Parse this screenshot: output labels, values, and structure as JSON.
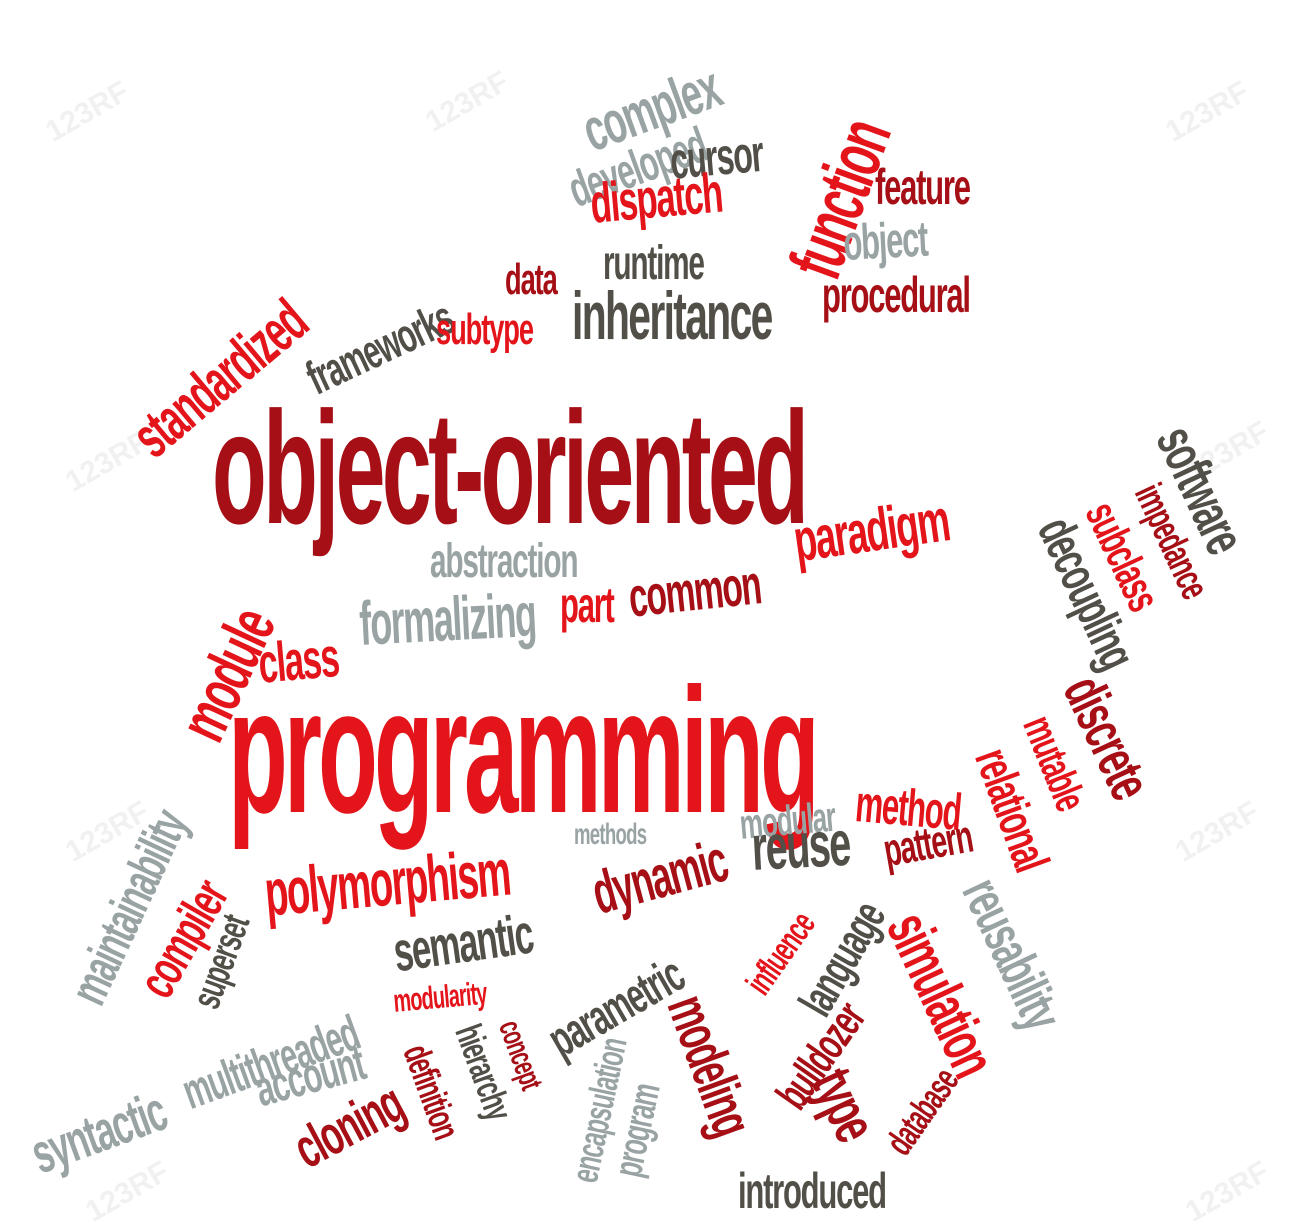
{
  "colors": {
    "dark_red": "#a50f15",
    "red": "#e4141b",
    "grey": "#99a3a4",
    "olive": "#514f47"
  },
  "watermark_text": "123RF",
  "words": {
    "object_oriented": "object-oriented",
    "programming": "programming",
    "complex": "complex",
    "developed": "developed",
    "cursor": "cursor",
    "dispatch": "dispatch",
    "function": "function",
    "feature": "feature",
    "object": "object",
    "standardized": "standardized",
    "frameworks": "frameworks",
    "data": "data",
    "runtime": "runtime",
    "inheritance": "inheritance",
    "procedural": "procedural",
    "subtype": "subtype",
    "software": "software",
    "impedance": "impedance",
    "subclass": "subclass",
    "decoupling": "decoupling",
    "abstraction": "abstraction",
    "paradigm": "paradigm",
    "part": "part",
    "common": "common",
    "class": "class",
    "formalizing": "formalizing",
    "module": "module",
    "discrete": "discrete",
    "mutable": "mutable",
    "relational": "relational",
    "maintainability": "maintainability",
    "compiler": "compiler",
    "modular": "modular",
    "method": "method",
    "methods": "methods",
    "reuse": "reuse",
    "pattern": "pattern",
    "polymorphism": "polymorphism",
    "dynamic": "dynamic",
    "superset": "superset",
    "semantic": "semantic",
    "multithreaded": "multithreaded",
    "influence": "influence",
    "language": "language",
    "simulation": "simulation",
    "reusability": "reusability",
    "parametric": "parametric",
    "modularity": "modularity",
    "account": "account",
    "syntactic": "syntactic",
    "cloning": "cloning",
    "definition": "definition",
    "hierarchy": "hierarchy",
    "concept": "concept",
    "encapsulation": "encapsulation",
    "program": "program",
    "modeling": "modeling",
    "bulldozer": "bulldozer",
    "type": "type",
    "database": "database",
    "introduced": "introduced"
  }
}
